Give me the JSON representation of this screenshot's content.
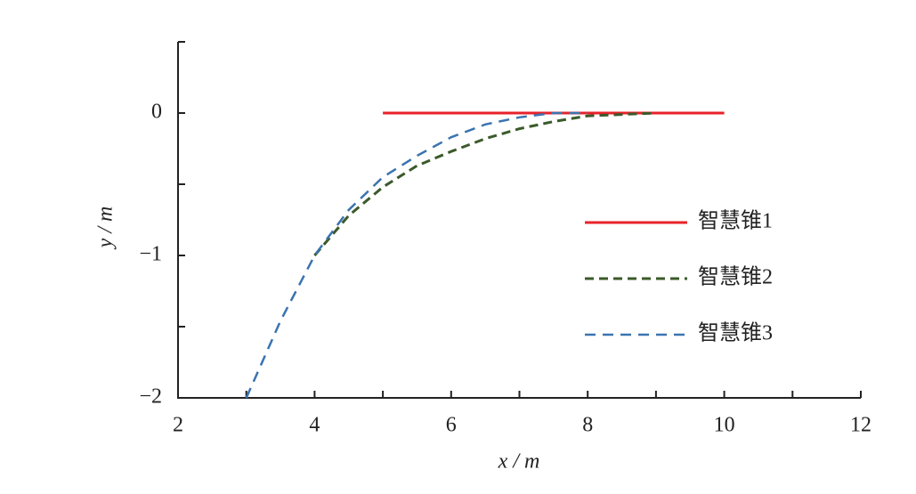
{
  "chart_data": {
    "type": "line",
    "xlabel": "x / m",
    "ylabel": "y / m",
    "xlim": [
      2,
      12
    ],
    "xticks": [
      2,
      4,
      6,
      8,
      10,
      12
    ],
    "xminor_ticks": [
      3,
      5,
      7,
      9,
      11
    ],
    "ylim": [
      -2,
      0.5
    ],
    "yticks": [
      {
        "value": -2,
        "label": "−2"
      },
      {
        "value": -1,
        "label": "−1"
      },
      0
    ],
    "yminor_ticks": [
      -1.5,
      -0.5,
      0.5
    ],
    "legend": "center right",
    "series": [
      {
        "name": "智慧锥1",
        "color": "#e8222a",
        "dash": "solid",
        "x": [
          5,
          10
        ],
        "values": [
          0,
          0
        ]
      },
      {
        "name": "智慧锥2",
        "color": "#3b5a2a",
        "dash": "dashed",
        "x": [
          4,
          4.5,
          5,
          5.5,
          6,
          6.5,
          7,
          7.5,
          8,
          8.5,
          9
        ],
        "values": [
          -1,
          -0.72,
          -0.52,
          -0.37,
          -0.27,
          -0.18,
          -0.11,
          -0.06,
          -0.02,
          -0.01,
          0
        ]
      },
      {
        "name": "智慧锥3",
        "color": "#3a74b0",
        "dash": "dashed",
        "x": [
          3,
          3.5,
          4,
          4.5,
          5,
          5.5,
          6,
          6.5,
          7,
          7.5,
          8
        ],
        "values": [
          -2,
          -1.46,
          -1,
          -0.68,
          -0.45,
          -0.3,
          -0.17,
          -0.08,
          -0.03,
          0,
          0
        ]
      }
    ]
  }
}
